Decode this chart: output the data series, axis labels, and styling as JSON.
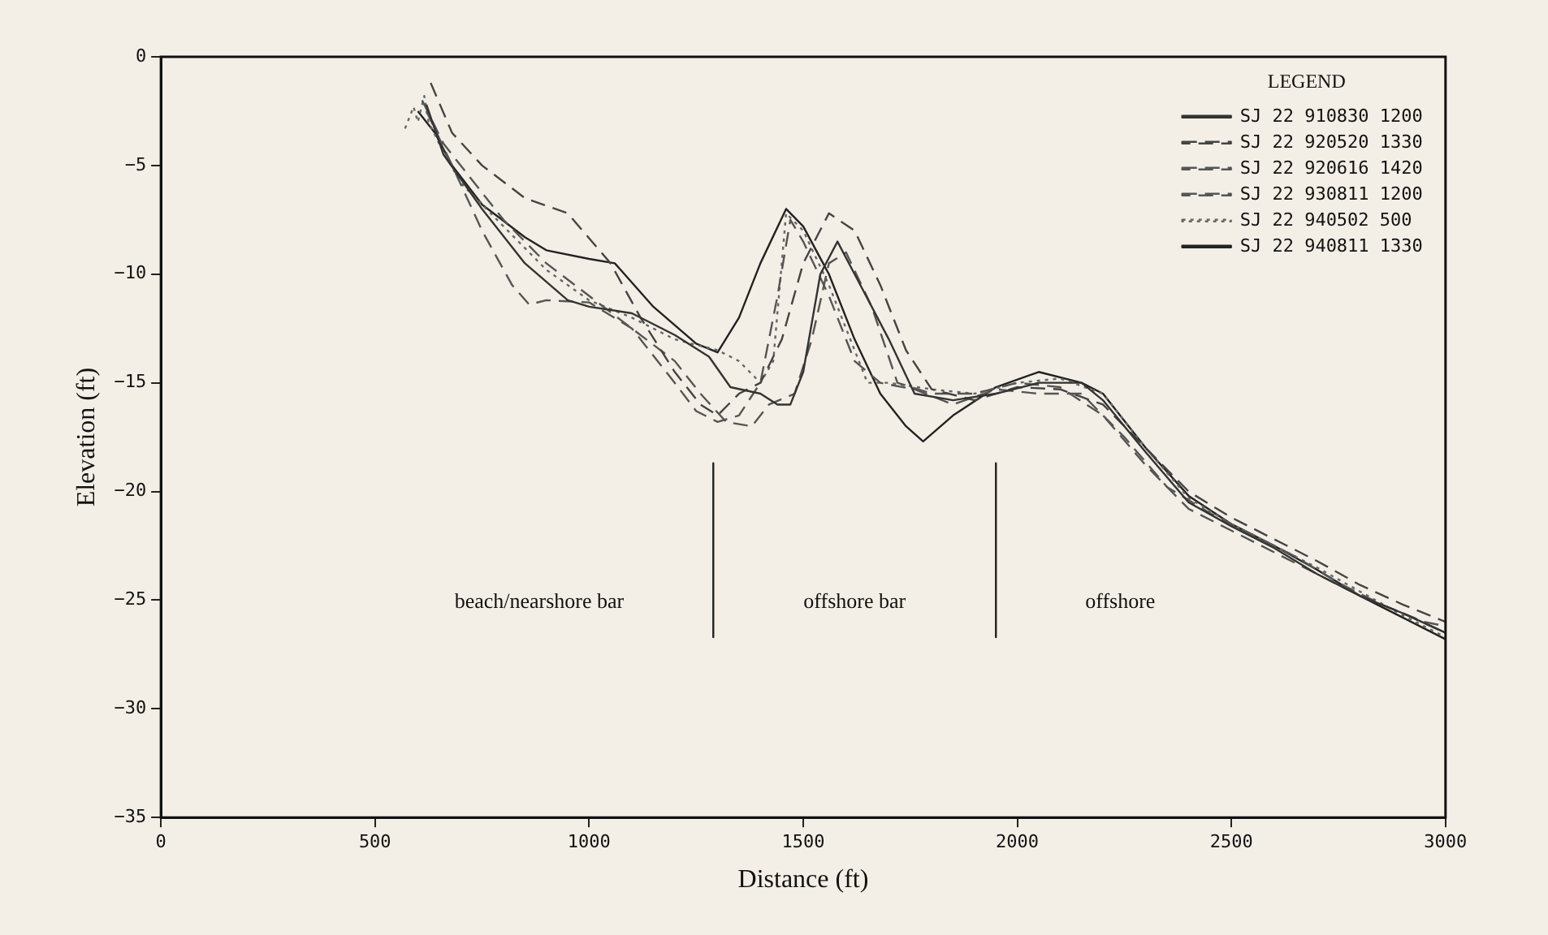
{
  "chart_data": {
    "type": "line",
    "xlabel": "Distance (ft)",
    "ylabel": "Elevation (ft)",
    "legend_title": "LEGEND",
    "legend": "top right",
    "grid": false,
    "marker": "none",
    "xlim": [
      0,
      3000
    ],
    "xticks": [
      0,
      500,
      1000,
      1500,
      2000,
      2500,
      3000
    ],
    "ylim": [
      -35,
      0
    ],
    "yticks": [
      -35,
      -30,
      -25,
      -20,
      -15,
      -10,
      -5,
      0
    ],
    "series": [
      {
        "name": "SJ 22 910830 1200",
        "color": "#333333",
        "line_style": "solid",
        "x": [
          620,
          660,
          750,
          850,
          950,
          1000,
          1100,
          1200,
          1280,
          1330,
          1400,
          1440,
          1470,
          1500,
          1540,
          1580,
          1620,
          1700,
          1760,
          1850,
          1950,
          2050,
          2150,
          2200,
          2300,
          2400,
          2500,
          2600,
          2700,
          2800,
          2900,
          3000
        ],
        "values": [
          -2.2,
          -4.5,
          -7,
          -9.5,
          -11.2,
          -11.5,
          -11.8,
          -12.8,
          -13.8,
          -15.2,
          -15.5,
          -16,
          -16,
          -14.5,
          -10,
          -8.5,
          -10,
          -13,
          -15.5,
          -15.8,
          -15.5,
          -15,
          -15,
          -15.8,
          -18.2,
          -20.5,
          -21.6,
          -22.6,
          -23.8,
          -24.8,
          -25.6,
          -26.5
        ]
      },
      {
        "name": "SJ 22 920520 1330",
        "color": "#444444",
        "line_style": "dashed",
        "x": [
          630,
          680,
          750,
          850,
          950,
          1050,
          1120,
          1200,
          1260,
          1300,
          1350,
          1400,
          1450,
          1500,
          1560,
          1620,
          1680,
          1740,
          1800,
          1900,
          2000,
          2100,
          2200,
          2300,
          2400,
          2500,
          2600,
          2700,
          2800,
          2900,
          3000
        ],
        "values": [
          -1.2,
          -3.5,
          -5,
          -6.5,
          -7.2,
          -9.5,
          -12,
          -14.5,
          -16,
          -16.5,
          -15.5,
          -15,
          -13,
          -9.5,
          -7.2,
          -8,
          -10.5,
          -13.5,
          -15.3,
          -15.8,
          -15.2,
          -15.3,
          -16,
          -18,
          -20,
          -21.2,
          -22.2,
          -23.2,
          -24.3,
          -25.2,
          -26
        ]
      },
      {
        "name": "SJ 22 920616 1420",
        "color": "#555555",
        "line_style": "dashed",
        "x": [
          620,
          680,
          750,
          820,
          860,
          900,
          1000,
          1100,
          1200,
          1250,
          1300,
          1350,
          1400,
          1440,
          1470,
          1500,
          1560,
          1620,
          1680,
          1760,
          1850,
          1950,
          2050,
          2150,
          2250,
          2350,
          2450,
          2550,
          2650,
          2750,
          2850,
          2950,
          3000
        ],
        "values": [
          -2.5,
          -5,
          -8,
          -10.5,
          -11.4,
          -11.2,
          -11.3,
          -12.5,
          -15,
          -16.3,
          -16.8,
          -16.5,
          -15,
          -11,
          -7.5,
          -8.5,
          -11,
          -14,
          -15,
          -15.3,
          -16,
          -15.3,
          -15.5,
          -15.5,
          -17.5,
          -19.8,
          -21,
          -22,
          -23,
          -24.2,
          -25.2,
          -26,
          -26.2
        ]
      },
      {
        "name": "SJ 22 930811 1200",
        "color": "#555555",
        "line_style": "dashed",
        "x": [
          610,
          660,
          720,
          800,
          900,
          1000,
          1100,
          1200,
          1260,
          1320,
          1380,
          1420,
          1480,
          1520,
          1560,
          1600,
          1660,
          1720,
          1800,
          1900,
          2000,
          2100,
          2200,
          2300,
          2400,
          2500,
          2600,
          2700,
          2800,
          2900,
          3000
        ],
        "values": [
          -2,
          -4,
          -5.5,
          -7.5,
          -9.5,
          -11,
          -12.5,
          -14,
          -15.5,
          -16.8,
          -17,
          -16,
          -15.5,
          -13,
          -9.5,
          -9,
          -11.5,
          -15,
          -15.5,
          -15.5,
          -15,
          -15.2,
          -16.5,
          -18.8,
          -20.8,
          -21.8,
          -22.8,
          -23.8,
          -24.8,
          -25.6,
          -26.5
        ]
      },
      {
        "name": "SJ 22 940502 500",
        "color": "#666666",
        "line_style": "dotted",
        "x": [
          570,
          590,
          600,
          615,
          625,
          650,
          700,
          800,
          900,
          1000,
          1100,
          1200,
          1300,
          1350,
          1400,
          1430,
          1460,
          1500,
          1560,
          1600,
          1650,
          1700,
          1800,
          1900,
          2000,
          2100,
          2200,
          2300,
          2400,
          2500,
          2600,
          2700,
          2800,
          2900,
          3000
        ],
        "values": [
          -3.3,
          -2.3,
          -3,
          -1.8,
          -3,
          -4,
          -5.8,
          -7.8,
          -9.8,
          -11.2,
          -12,
          -13,
          -13.5,
          -14,
          -15,
          -14,
          -7.2,
          -8,
          -10.5,
          -12.5,
          -15,
          -15,
          -15.3,
          -15.5,
          -15,
          -14.8,
          -15.5,
          -18,
          -20.3,
          -21.5,
          -22.5,
          -23.5,
          -24.6,
          -25.7,
          -26.7
        ]
      },
      {
        "name": "SJ 22 940811 1330",
        "color": "#222222",
        "line_style": "solid",
        "x": [
          600,
          640,
          680,
          750,
          850,
          900,
          1000,
          1060,
          1150,
          1250,
          1300,
          1350,
          1400,
          1460,
          1500,
          1560,
          1620,
          1680,
          1740,
          1780,
          1850,
          1950,
          2050,
          2150,
          2200,
          2300,
          2400,
          2500,
          2600,
          2700,
          2800,
          2900,
          3000
        ],
        "values": [
          -2.5,
          -3.5,
          -5,
          -6.8,
          -8.3,
          -8.9,
          -9.3,
          -9.5,
          -11.5,
          -13.2,
          -13.6,
          -12,
          -9.5,
          -7,
          -7.8,
          -10,
          -13,
          -15.5,
          -17,
          -17.7,
          -16.5,
          -15.2,
          -14.5,
          -15,
          -15.5,
          -18,
          -20.2,
          -21.5,
          -22.5,
          -23.6,
          -24.8,
          -25.8,
          -26.8
        ]
      },
      {
        "color": "#222222",
        "line_style": "solid",
        "x": [
          1290,
          1290
        ],
        "values": [
          -18.7,
          -26.7
        ]
      },
      {
        "color": "#222222",
        "line_style": "solid",
        "x": [
          1950,
          1950
        ],
        "values": [
          -18.7,
          -26.7
        ]
      }
    ],
    "annotations": [
      "beach/nearshore bar",
      "offshore bar",
      "offshore"
    ]
  }
}
